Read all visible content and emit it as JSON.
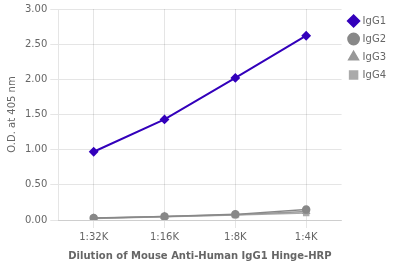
{
  "chart_data": {
    "type": "line",
    "x_label": "Dilution of Mouse Anti-Human IgG1 Hinge-HRP",
    "y_label": "O.D. at 405 nm",
    "categories": [
      "1:32K",
      "1:16K",
      "1:8K",
      "1:4K"
    ],
    "series": [
      {
        "name": "IgG1",
        "color": "#3300bb",
        "marker": "diamond",
        "values": [
          0.97,
          1.43,
          2.02,
          2.62
        ]
      },
      {
        "name": "IgG2",
        "color": "#888888",
        "marker": "circle",
        "values": [
          0.03,
          0.05,
          0.08,
          0.15
        ]
      },
      {
        "name": "IgG3",
        "color": "#999999",
        "marker": "triangle",
        "values": [
          0.025,
          0.048,
          0.075,
          0.12
        ]
      },
      {
        "name": "IgG4",
        "color": "#aaaaaa",
        "marker": "square",
        "values": [
          0.02,
          0.045,
          0.07,
          0.1
        ]
      }
    ],
    "ylim": [
      0.0,
      3.0
    ],
    "yticks": [
      {
        "value": 0.0,
        "label": "0.00"
      },
      {
        "value": 0.5,
        "label": "0.50"
      },
      {
        "value": 1.0,
        "label": "1.00"
      },
      {
        "value": 1.5,
        "label": "1.50"
      },
      {
        "value": 2.0,
        "label": "2.00"
      },
      {
        "value": 2.5,
        "label": "2.50"
      },
      {
        "value": 3.0,
        "label": "3.00"
      }
    ],
    "grid": true,
    "legend": "right"
  }
}
